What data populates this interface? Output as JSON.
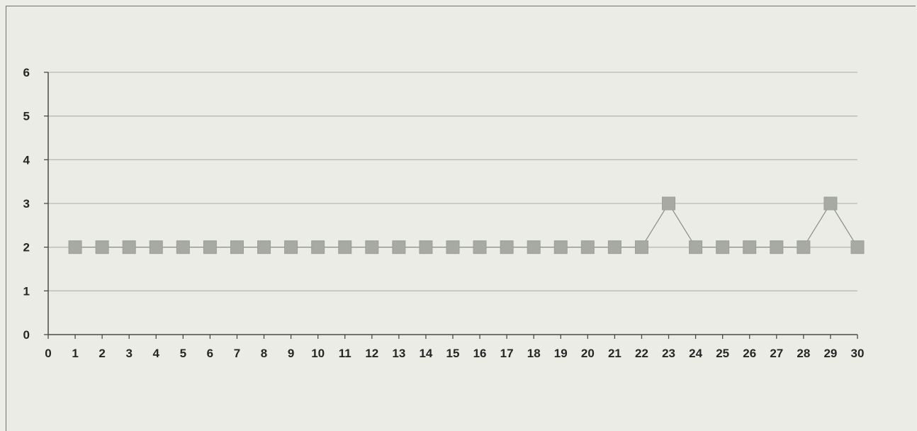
{
  "chart_data": {
    "type": "line",
    "title": "",
    "xlabel": "",
    "ylabel": "",
    "xlim": [
      0,
      30
    ],
    "ylim": [
      0,
      6
    ],
    "x_ticks": [
      0,
      1,
      2,
      3,
      4,
      5,
      6,
      7,
      8,
      9,
      10,
      11,
      12,
      13,
      14,
      15,
      16,
      17,
      18,
      19,
      20,
      21,
      22,
      23,
      24,
      25,
      26,
      27,
      28,
      29,
      30
    ],
    "y_ticks": [
      0,
      1,
      2,
      3,
      4,
      5,
      6
    ],
    "grid": true,
    "legend": "none",
    "series": [
      {
        "x": [
          1,
          2,
          3,
          4,
          5,
          6,
          7,
          8,
          9,
          10,
          11,
          12,
          13,
          14,
          15,
          16,
          17,
          18,
          19,
          20,
          21,
          22,
          23,
          24,
          25,
          26,
          27,
          28,
          29,
          30
        ],
        "values": [
          2,
          2,
          2,
          2,
          2,
          2,
          2,
          2,
          2,
          2,
          2,
          2,
          2,
          2,
          2,
          2,
          2,
          2,
          2,
          2,
          2,
          2,
          3,
          2,
          2,
          2,
          2,
          2,
          3,
          2
        ],
        "marker": "square",
        "color": "#a7aaa3",
        "line_color": "#8a8c86"
      }
    ]
  }
}
